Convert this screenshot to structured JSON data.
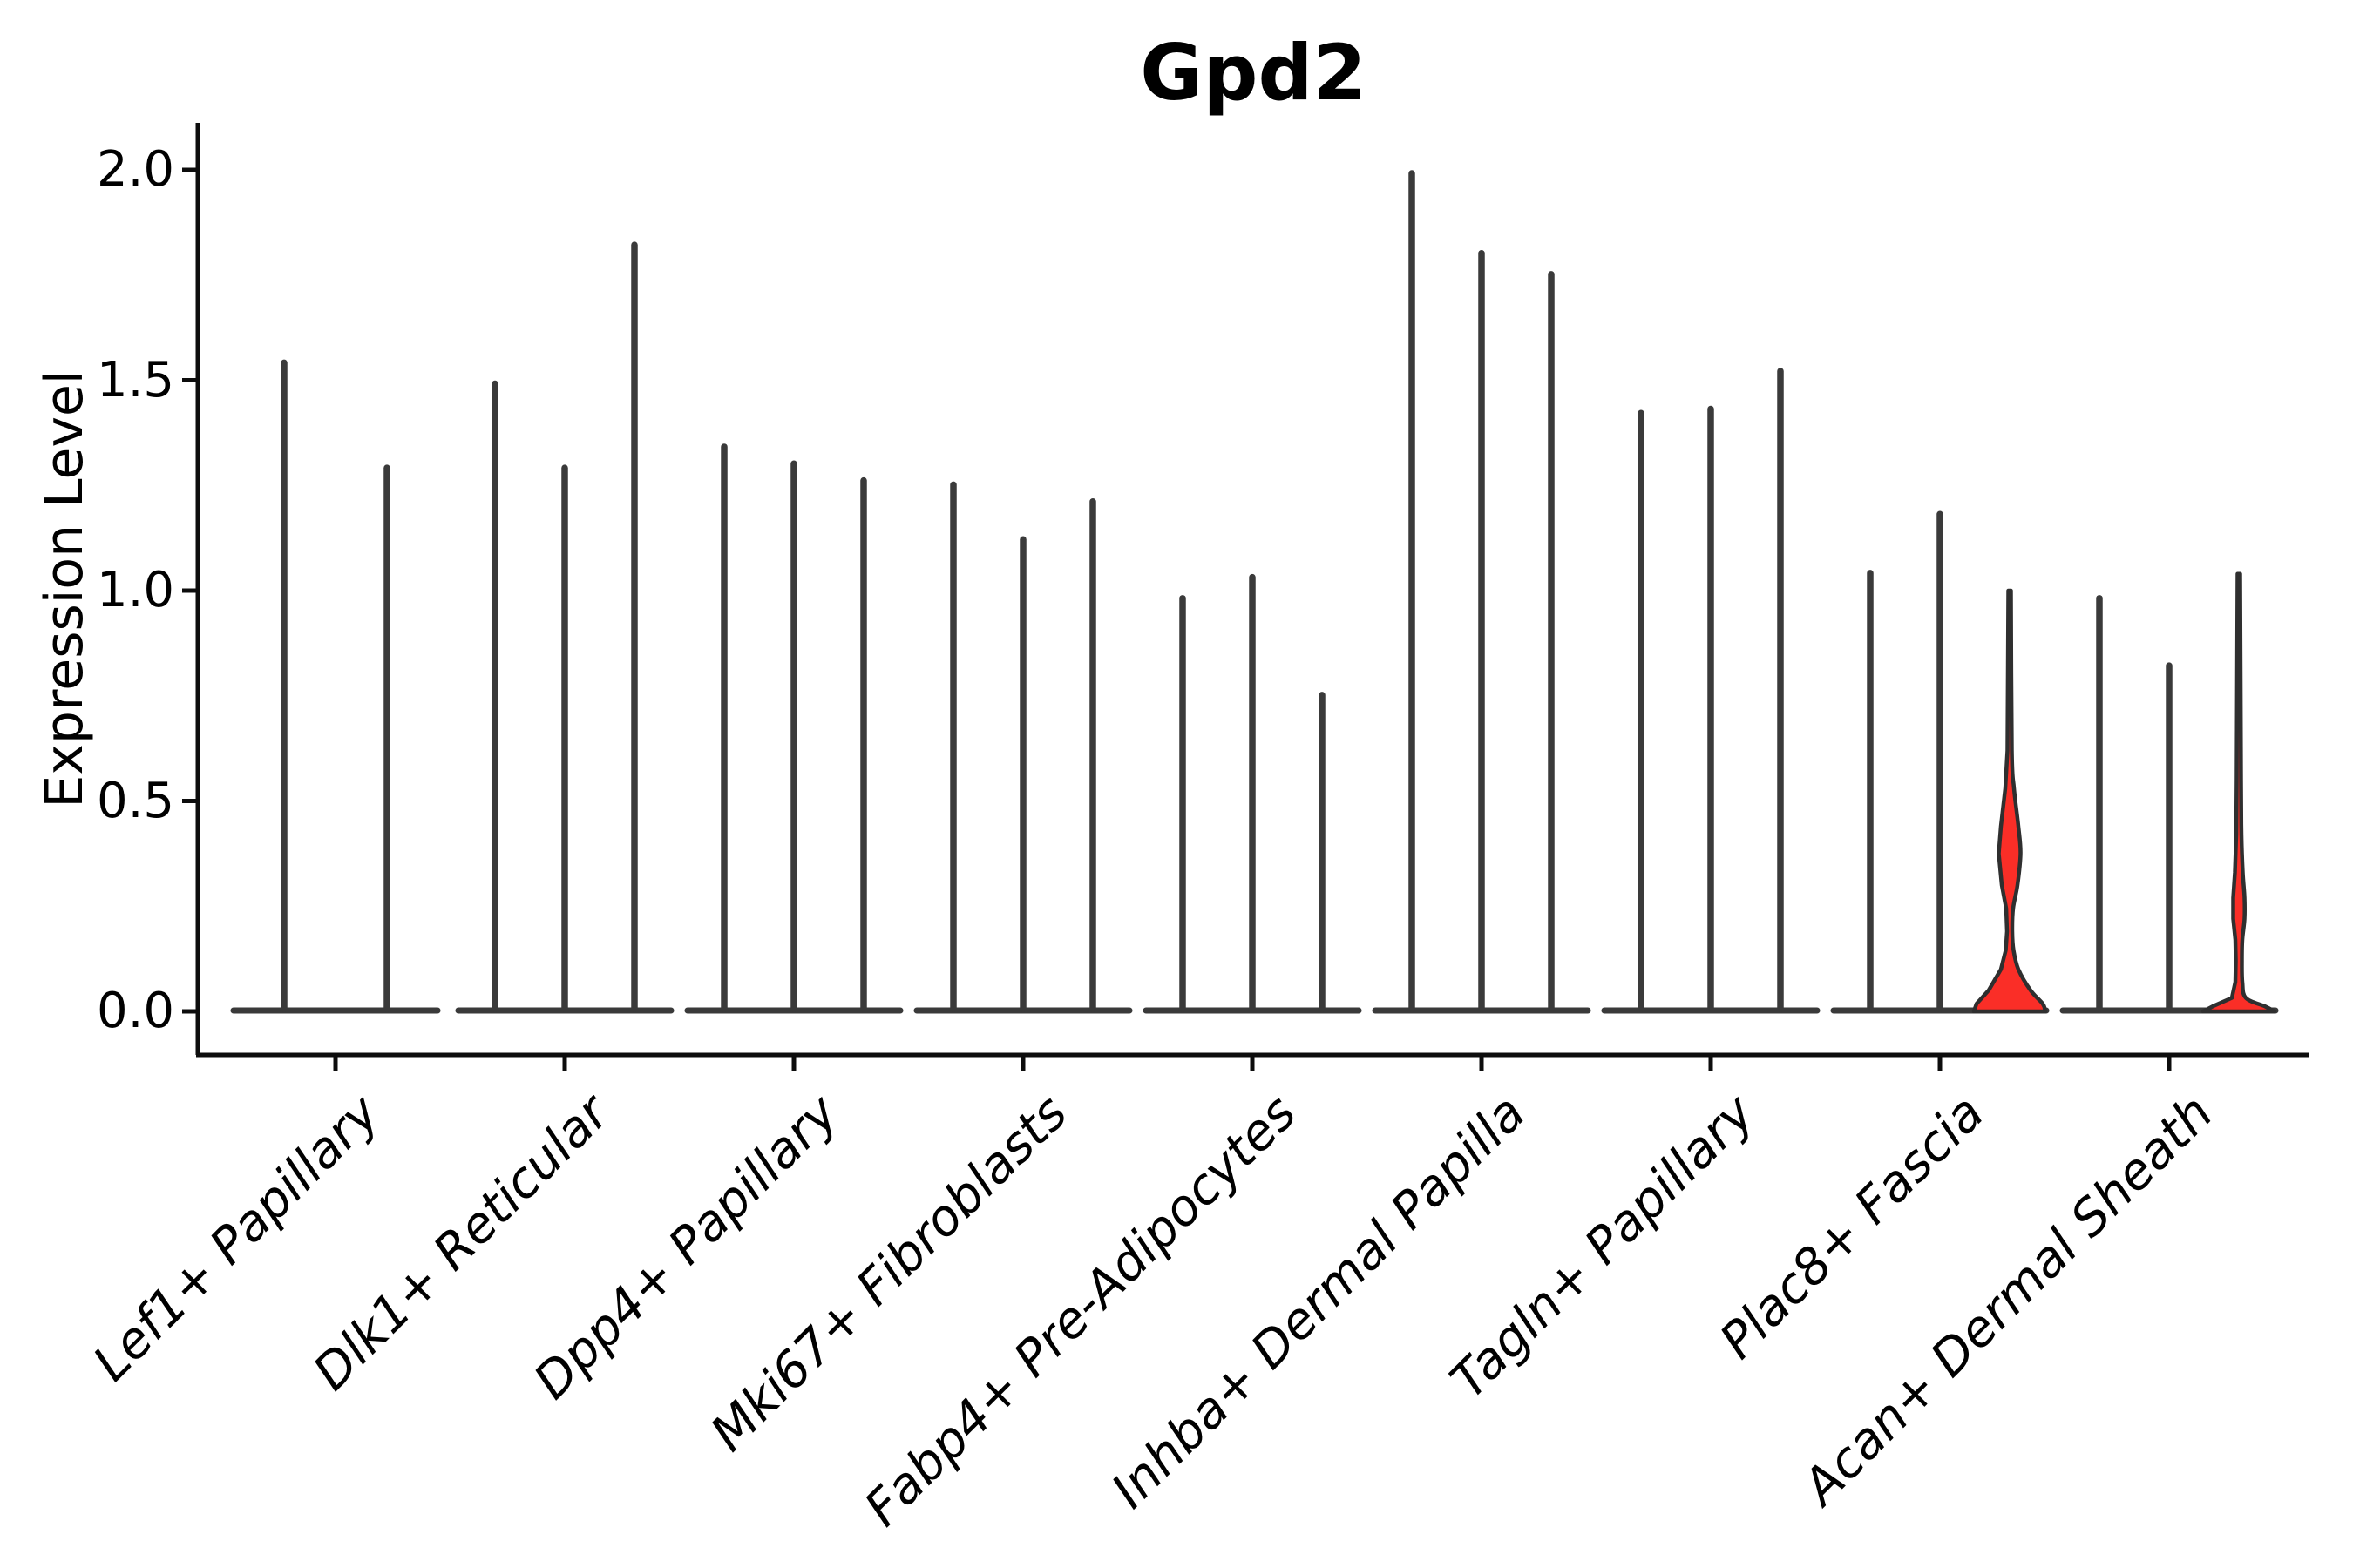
{
  "figure": {
    "title": "Gpd2",
    "ylabel": "Expression Level",
    "background": "#ffffff"
  },
  "colors": {
    "axis": "#0d0d0d",
    "stem": "#3a3a3a",
    "violin_edge": "#2f2f2f",
    "highlight_fill": "#fa2e27",
    "text": "#000000"
  },
  "chart_data": {
    "type": "violin",
    "title": "Gpd2",
    "xlabel": "",
    "ylabel": "Expression Level",
    "ylim": [
      -0.1,
      2.11
    ],
    "yticks": [
      0.0,
      0.5,
      1.0,
      1.5,
      2.0
    ],
    "y_tick_labels": [
      "0.0",
      "0.5",
      "1.0",
      "1.5",
      "2.0"
    ],
    "grid": false,
    "legend": "none",
    "note": "Most cells are zero-inflated: each violin collapses to a flat bulge at 0 with a thin spike up to its max expression; only two violins (3rd of Plac8+ Fascia and 3rd of Acan+ Dermal Sheath) show a red-filled density body.",
    "categories": [
      "Lef1+ Papillary",
      "Dlk1+ Reticular",
      "Dpp4+ Papillary",
      "Mki67+ Fibroblasts",
      "Fabp4+ Pre-Adipocytes",
      "Inhba+ Dermal Papilla",
      "Tagln+ Papillary",
      "Plac8+ Fascia",
      "Acan+ Dermal Sheath"
    ],
    "groups": [
      {
        "label": "Lef1+ Papillary",
        "violins": [
          {
            "max": 1.55
          },
          {
            "max": 1.3
          }
        ]
      },
      {
        "label": "Dlk1+ Reticular",
        "violins": [
          {
            "max": 1.5
          },
          {
            "max": 1.3
          },
          {
            "max": 1.83
          }
        ]
      },
      {
        "label": "Dpp4+ Papillary",
        "violins": [
          {
            "max": 1.35
          },
          {
            "max": 1.31
          },
          {
            "max": 1.27
          }
        ]
      },
      {
        "label": "Mki67+ Fibroblasts",
        "violins": [
          {
            "max": 1.26
          },
          {
            "max": 1.13
          },
          {
            "max": 1.22
          }
        ]
      },
      {
        "label": "Fabp4+ Pre-Adipocytes",
        "violins": [
          {
            "max": 0.99
          },
          {
            "max": 1.04
          },
          {
            "max": 0.76
          }
        ]
      },
      {
        "label": "Inhba+ Dermal Papilla",
        "violins": [
          {
            "max": 2.0
          },
          {
            "max": 1.81
          },
          {
            "max": 1.76
          }
        ]
      },
      {
        "label": "Tagln+ Papillary",
        "violins": [
          {
            "max": 1.43
          },
          {
            "max": 1.44
          },
          {
            "max": 1.53
          }
        ]
      },
      {
        "label": "Plac8+ Fascia",
        "violins": [
          {
            "max": 1.05
          },
          {
            "max": 1.19
          },
          {
            "max": 1.0,
            "highlighted": true,
            "profile": [
              [
                1.0,
                1.5
              ],
              [
                0.62,
                2.5
              ],
              [
                0.53,
                5
              ],
              [
                0.44,
                10
              ],
              [
                0.375,
                12.5
              ],
              [
                0.3,
                9
              ],
              [
                0.245,
                4
              ],
              [
                0.19,
                3
              ],
              [
                0.145,
                4.5
              ],
              [
                0.1,
                10
              ],
              [
                0.05,
                24
              ],
              [
                0.018,
                38
              ],
              [
                0.0,
                41
              ]
            ]
          }
        ]
      },
      {
        "label": "Acan+ Dermal Sheath",
        "violins": [
          {
            "max": 0.99
          },
          {
            "max": 0.83
          },
          {
            "max": 1.04,
            "highlighted": true,
            "profile": [
              [
                1.04,
                1.5
              ],
              [
                0.55,
                2.5
              ],
              [
                0.42,
                3
              ],
              [
                0.33,
                4.5
              ],
              [
                0.27,
                6.5
              ],
              [
                0.22,
                6.5
              ],
              [
                0.17,
                4
              ],
              [
                0.12,
                3.5
              ],
              [
                0.07,
                4
              ],
              [
                0.032,
                8
              ],
              [
                0.012,
                30
              ],
              [
                0.0,
                41
              ]
            ]
          }
        ]
      }
    ]
  }
}
